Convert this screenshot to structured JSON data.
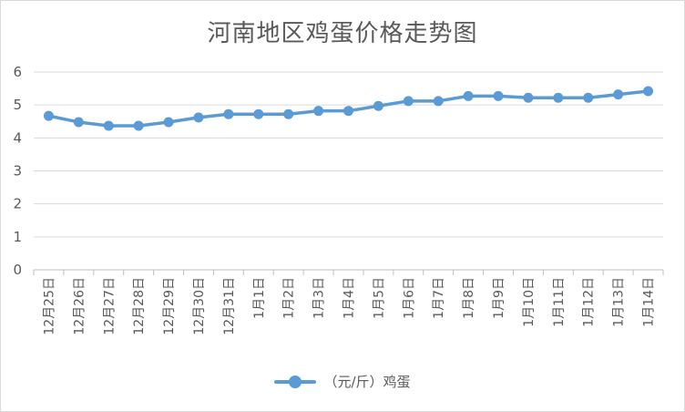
{
  "chart_data": {
    "type": "line",
    "title": "河南地区鸡蛋价格走势图",
    "categories": [
      "12月25日",
      "12月26日",
      "12月27日",
      "12月28日",
      "12月29日",
      "12月30日",
      "12月31日",
      "1月1日",
      "1月2日",
      "1月3日",
      "1月4日",
      "1月5日",
      "1月6日",
      "1月7日",
      "1月8日",
      "1月9日",
      "1月10日",
      "1月11日",
      "1月12日",
      "1月13日",
      "1月14日"
    ],
    "series": [
      {
        "name": "（元/斤）鸡蛋",
        "color": "#5b9bd5",
        "values": [
          4.67,
          4.48,
          4.37,
          4.37,
          4.48,
          4.62,
          4.72,
          4.72,
          4.72,
          4.82,
          4.82,
          4.97,
          5.12,
          5.12,
          5.27,
          5.27,
          5.22,
          5.22,
          5.22,
          5.32,
          5.42
        ]
      }
    ],
    "ylim": [
      0,
      6
    ],
    "yticks": [
      "0",
      "1",
      "2",
      "3",
      "4",
      "5",
      "6"
    ],
    "grid": true,
    "legend": "bottom",
    "xlabel": "",
    "ylabel": ""
  }
}
